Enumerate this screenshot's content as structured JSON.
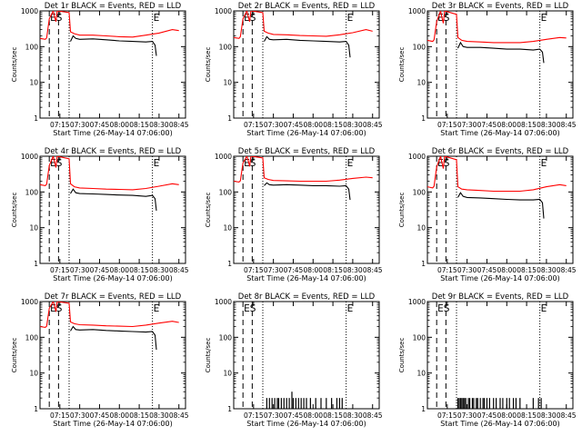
{
  "chart_data": [
    {
      "type": "line",
      "title": "Det 1r BLACK = Events, RED = LLD",
      "xlabel": "Start Time (26-May-14 07:06:00)",
      "ylabel": "Counts/sec",
      "yscale": "log",
      "ylim": [
        1,
        1000
      ],
      "x_ticks": [
        "07:15",
        "07:30",
        "07:45",
        "08:00",
        "08:15",
        "08:30",
        "08:45"
      ],
      "y_ticks": [
        "1",
        "10",
        "100",
        "1000"
      ],
      "markers": [
        {
          "label": "ES",
          "time": "07:07"
        },
        {
          "label": "E",
          "time": "08:25"
        }
      ],
      "lines_dashed": [
        "07:07",
        "07:14"
      ],
      "lines_dotted": [
        "07:22",
        "08:25"
      ],
      "series": [
        {
          "name": "Events",
          "color": "#000000",
          "x": [
            "07:23",
            "07:25",
            "07:27",
            "07:30",
            "07:40",
            "07:50",
            "08:00",
            "08:10",
            "08:20",
            "08:25",
            "08:27",
            "08:28"
          ],
          "y": [
            140,
            200,
            170,
            160,
            165,
            155,
            145,
            140,
            135,
            140,
            110,
            55
          ]
        },
        {
          "name": "LLD",
          "color": "#ff0000",
          "x": [
            "07:00",
            "07:04",
            "07:05",
            "07:07",
            "07:10",
            "07:11",
            "07:12",
            "07:13",
            "07:22",
            "07:23",
            "07:26",
            "07:30",
            "07:40",
            "07:50",
            "08:00",
            "08:10",
            "08:20",
            "08:30",
            "08:40",
            "08:45"
          ],
          "y": [
            170,
            160,
            175,
            600,
            1000,
            700,
            500,
            1000,
            900,
            260,
            230,
            210,
            210,
            200,
            190,
            185,
            210,
            240,
            300,
            280
          ]
        }
      ]
    },
    {
      "type": "line",
      "title": "Det 2r BLACK = Events, RED = LLD",
      "xlabel": "Start Time (26-May-14 07:06:00)",
      "ylabel": "Counts/sec",
      "yscale": "log",
      "ylim": [
        1,
        1000
      ],
      "x_ticks": [
        "07:15",
        "07:30",
        "07:45",
        "08:00",
        "08:15",
        "08:30",
        "08:45"
      ],
      "y_ticks": [
        "1",
        "10",
        "100",
        "1000"
      ],
      "markers": [
        {
          "label": "ES",
          "time": "07:07"
        },
        {
          "label": "E",
          "time": "08:25"
        }
      ],
      "lines_dashed": [
        "07:07",
        "07:14"
      ],
      "lines_dotted": [
        "07:22",
        "08:25"
      ],
      "series": [
        {
          "name": "Events",
          "color": "#000000",
          "x": [
            "07:23",
            "07:25",
            "07:27",
            "07:30",
            "07:40",
            "07:50",
            "08:00",
            "08:10",
            "08:20",
            "08:25",
            "08:27",
            "08:28"
          ],
          "y": [
            140,
            190,
            160,
            155,
            160,
            150,
            145,
            140,
            135,
            140,
            110,
            50
          ]
        },
        {
          "name": "LLD",
          "color": "#ff0000",
          "x": [
            "07:00",
            "07:04",
            "07:05",
            "07:07",
            "07:10",
            "07:11",
            "07:12",
            "07:13",
            "07:22",
            "07:23",
            "07:26",
            "07:30",
            "07:40",
            "07:50",
            "08:00",
            "08:10",
            "08:20",
            "08:30",
            "08:40",
            "08:45"
          ],
          "y": [
            180,
            170,
            190,
            600,
            1000,
            700,
            500,
            1000,
            900,
            270,
            240,
            220,
            215,
            205,
            200,
            195,
            215,
            245,
            300,
            270
          ]
        }
      ]
    },
    {
      "type": "line",
      "title": "Det 3r BLACK = Events, RED = LLD",
      "xlabel": "Start Time (26-May-14 07:06:00)",
      "ylabel": "Counts/sec",
      "yscale": "log",
      "ylim": [
        1,
        1000
      ],
      "x_ticks": [
        "07:15",
        "07:30",
        "07:45",
        "08:00",
        "08:15",
        "08:30",
        "08:45"
      ],
      "y_ticks": [
        "1",
        "10",
        "100",
        "1000"
      ],
      "markers": [
        {
          "label": "ES",
          "time": "07:07"
        },
        {
          "label": "E",
          "time": "08:25"
        }
      ],
      "lines_dashed": [
        "07:07",
        "07:14"
      ],
      "lines_dotted": [
        "07:22",
        "08:25"
      ],
      "series": [
        {
          "name": "Events",
          "color": "#000000",
          "x": [
            "07:23",
            "07:25",
            "07:27",
            "07:30",
            "07:40",
            "07:50",
            "08:00",
            "08:10",
            "08:20",
            "08:25",
            "08:27",
            "08:28"
          ],
          "y": [
            90,
            130,
            100,
            95,
            95,
            90,
            85,
            85,
            80,
            85,
            70,
            35
          ]
        },
        {
          "name": "LLD",
          "color": "#ff0000",
          "x": [
            "07:00",
            "07:04",
            "07:05",
            "07:07",
            "07:10",
            "07:11",
            "07:12",
            "07:13",
            "07:22",
            "07:23",
            "07:26",
            "07:30",
            "07:40",
            "07:50",
            "08:00",
            "08:10",
            "08:20",
            "08:30",
            "08:40",
            "08:45"
          ],
          "y": [
            150,
            140,
            155,
            500,
            1000,
            650,
            450,
            1000,
            800,
            180,
            150,
            140,
            135,
            130,
            130,
            130,
            140,
            160,
            180,
            175
          ]
        }
      ]
    },
    {
      "type": "line",
      "title": "Det 4r BLACK = Events, RED = LLD",
      "xlabel": "Start Time (26-May-14 07:06:00)",
      "ylabel": "Counts/sec",
      "yscale": "log",
      "ylim": [
        1,
        1000
      ],
      "x_ticks": [
        "07:15",
        "07:30",
        "07:45",
        "08:00",
        "08:15",
        "08:30",
        "08:45"
      ],
      "y_ticks": [
        "1",
        "10",
        "100",
        "1000"
      ],
      "markers": [
        {
          "label": "ES",
          "time": "07:07"
        },
        {
          "label": "E",
          "time": "08:25"
        }
      ],
      "lines_dashed": [
        "07:07",
        "07:14"
      ],
      "lines_dotted": [
        "07:22",
        "08:25"
      ],
      "series": [
        {
          "name": "Events",
          "color": "#000000",
          "x": [
            "07:23",
            "07:25",
            "07:27",
            "07:30",
            "07:40",
            "07:50",
            "08:00",
            "08:10",
            "08:20",
            "08:25",
            "08:27",
            "08:28"
          ],
          "y": [
            90,
            120,
            95,
            90,
            88,
            85,
            82,
            80,
            75,
            80,
            65,
            30
          ]
        },
        {
          "name": "LLD",
          "color": "#ff0000",
          "x": [
            "07:00",
            "07:04",
            "07:05",
            "07:07",
            "07:10",
            "07:11",
            "07:12",
            "07:13",
            "07:22",
            "07:23",
            "07:26",
            "07:30",
            "07:40",
            "07:50",
            "08:00",
            "08:10",
            "08:20",
            "08:30",
            "08:40",
            "08:45"
          ],
          "y": [
            160,
            150,
            165,
            550,
            1000,
            700,
            480,
            1000,
            850,
            170,
            140,
            130,
            125,
            120,
            118,
            115,
            125,
            145,
            170,
            160
          ]
        }
      ]
    },
    {
      "type": "line",
      "title": "Det 5r BLACK = Events, RED = LLD",
      "xlabel": "Start Time (26-May-14 07:06:00)",
      "ylabel": "Counts/sec",
      "yscale": "log",
      "ylim": [
        1,
        1000
      ],
      "x_ticks": [
        "07:15",
        "07:30",
        "07:45",
        "08:00",
        "08:15",
        "08:30",
        "08:45"
      ],
      "y_ticks": [
        "1",
        "10",
        "100",
        "1000"
      ],
      "markers": [
        {
          "label": "ES",
          "time": "07:07"
        },
        {
          "label": "E",
          "time": "08:25"
        }
      ],
      "lines_dashed": [
        "07:07",
        "07:14"
      ],
      "lines_dotted": [
        "07:22",
        "08:25"
      ],
      "series": [
        {
          "name": "Events",
          "color": "#000000",
          "x": [
            "07:23",
            "07:25",
            "07:27",
            "07:30",
            "07:40",
            "07:50",
            "08:00",
            "08:10",
            "08:20",
            "08:25",
            "08:27",
            "08:28"
          ],
          "y": [
            150,
            180,
            160,
            155,
            160,
            155,
            150,
            150,
            145,
            150,
            120,
            60
          ]
        },
        {
          "name": "LLD",
          "color": "#ff0000",
          "x": [
            "07:00",
            "07:04",
            "07:05",
            "07:07",
            "07:10",
            "07:11",
            "07:12",
            "07:13",
            "07:22",
            "07:23",
            "07:26",
            "07:30",
            "07:40",
            "07:50",
            "08:00",
            "08:10",
            "08:20",
            "08:30",
            "08:40",
            "08:45"
          ],
          "y": [
            200,
            190,
            205,
            650,
            1000,
            750,
            520,
            1000,
            900,
            250,
            225,
            210,
            205,
            200,
            200,
            200,
            215,
            240,
            260,
            250
          ]
        }
      ]
    },
    {
      "type": "line",
      "title": "Det 6r BLACK = Events, RED = LLD",
      "xlabel": "Start Time (26-May-14 07:06:00)",
      "ylabel": "Counts/sec",
      "yscale": "log",
      "ylim": [
        1,
        1000
      ],
      "x_ticks": [
        "07:15",
        "07:30",
        "07:45",
        "08:00",
        "08:15",
        "08:30",
        "08:45"
      ],
      "y_ticks": [
        "1",
        "10",
        "100",
        "1000"
      ],
      "markers": [
        {
          "label": "ES",
          "time": "07:07"
        },
        {
          "label": "E",
          "time": "08:25"
        }
      ],
      "lines_dashed": [
        "07:07",
        "07:14"
      ],
      "lines_dotted": [
        "07:22",
        "08:25"
      ],
      "series": [
        {
          "name": "Events",
          "color": "#000000",
          "x": [
            "07:23",
            "07:25",
            "07:27",
            "07:30",
            "07:40",
            "07:50",
            "08:00",
            "08:10",
            "08:20",
            "08:25",
            "08:27",
            "08:28"
          ],
          "y": [
            70,
            95,
            75,
            70,
            68,
            65,
            62,
            60,
            60,
            62,
            50,
            18
          ]
        },
        {
          "name": "LLD",
          "color": "#ff0000",
          "x": [
            "07:00",
            "07:04",
            "07:05",
            "07:07",
            "07:10",
            "07:11",
            "07:12",
            "07:13",
            "07:22",
            "07:23",
            "07:26",
            "07:30",
            "07:40",
            "07:50",
            "08:00",
            "08:10",
            "08:20",
            "08:30",
            "08:40",
            "08:45"
          ],
          "y": [
            140,
            130,
            145,
            500,
            1000,
            650,
            450,
            1000,
            800,
            140,
            120,
            115,
            110,
            105,
            105,
            105,
            115,
            140,
            160,
            150
          ]
        }
      ]
    },
    {
      "type": "line",
      "title": "Det 7r BLACK = Events, RED = LLD",
      "xlabel": "Start Time (26-May-14 07:06:00)",
      "ylabel": "Counts/sec",
      "yscale": "log",
      "ylim": [
        1,
        1000
      ],
      "x_ticks": [
        "07:15",
        "07:30",
        "07:45",
        "08:00",
        "08:15",
        "08:30",
        "08:45"
      ],
      "y_ticks": [
        "1",
        "10",
        "100",
        "1000"
      ],
      "markers": [
        {
          "label": "ES",
          "time": "07:07"
        },
        {
          "label": "E",
          "time": "08:25"
        }
      ],
      "lines_dashed": [
        "07:07",
        "07:14"
      ],
      "lines_dotted": [
        "07:22",
        "08:25"
      ],
      "series": [
        {
          "name": "Events",
          "color": "#000000",
          "x": [
            "07:23",
            "07:25",
            "07:27",
            "07:30",
            "07:40",
            "07:50",
            "08:00",
            "08:10",
            "08:20",
            "08:25",
            "08:27",
            "08:28"
          ],
          "y": [
            150,
            200,
            165,
            160,
            165,
            155,
            150,
            145,
            140,
            145,
            115,
            45
          ]
        },
        {
          "name": "LLD",
          "color": "#ff0000",
          "x": [
            "07:00",
            "07:04",
            "07:05",
            "07:07",
            "07:10",
            "07:11",
            "07:12",
            "07:13",
            "07:22",
            "07:23",
            "07:26",
            "07:30",
            "07:40",
            "07:50",
            "08:00",
            "08:10",
            "08:20",
            "08:30",
            "08:40",
            "08:45"
          ],
          "y": [
            200,
            190,
            205,
            650,
            1000,
            750,
            520,
            1000,
            900,
            270,
            240,
            225,
            220,
            210,
            205,
            200,
            220,
            250,
            280,
            260
          ]
        }
      ]
    },
    {
      "type": "bar",
      "title": "Det 8r BLACK = Events, RED = LLD",
      "xlabel": "Start Time (26-May-14 07:06:00)",
      "ylabel": "Counts/sec",
      "yscale": "log",
      "ylim": [
        1,
        1000
      ],
      "x_ticks": [
        "07:15",
        "07:30",
        "07:45",
        "08:00",
        "08:15",
        "08:30",
        "08:45"
      ],
      "y_ticks": [
        "1",
        "10",
        "100",
        "1000"
      ],
      "markers": [
        {
          "label": "ES",
          "time": "07:07"
        },
        {
          "label": "E",
          "time": "08:25"
        }
      ],
      "lines_dashed": [
        "07:07",
        "07:14"
      ],
      "lines_dotted": [
        "07:22",
        "08:25"
      ],
      "series": [
        {
          "name": "Events",
          "color": "#000000",
          "x": [
            "07:25",
            "07:27",
            "07:29",
            "07:31",
            "07:33",
            "07:34",
            "07:36",
            "07:38",
            "07:40",
            "07:42",
            "07:44",
            "07:45",
            "07:47",
            "07:49",
            "07:51",
            "07:53",
            "07:55",
            "07:58",
            "08:02",
            "08:06",
            "08:10",
            "08:14",
            "08:18",
            "08:20",
            "08:22"
          ],
          "y": [
            2,
            2,
            2,
            2,
            2,
            2,
            2,
            2,
            2,
            2,
            3,
            2,
            2,
            2,
            2,
            2,
            2,
            2,
            2,
            2,
            2,
            2,
            2,
            2,
            2
          ]
        }
      ]
    },
    {
      "type": "bar",
      "title": "Det 9r BLACK = Events, RED = LLD",
      "xlabel": "Start Time (26-May-14 07:06:00)",
      "ylabel": "Counts/sec",
      "yscale": "log",
      "ylim": [
        1,
        1000
      ],
      "x_ticks": [
        "07:15",
        "07:30",
        "07:45",
        "08:00",
        "08:15",
        "08:30",
        "08:45"
      ],
      "y_ticks": [
        "1",
        "10",
        "100",
        "1000"
      ],
      "markers": [
        {
          "label": "ES",
          "time": "07:07"
        },
        {
          "label": "E",
          "time": "08:25"
        }
      ],
      "lines_dashed": [
        "07:07",
        "07:14"
      ],
      "lines_dotted": [
        "07:22",
        "08:25"
      ],
      "series": [
        {
          "name": "Events",
          "color": "#000000",
          "x": [
            "07:23",
            "07:24",
            "07:25",
            "07:26",
            "07:27",
            "07:28",
            "07:29",
            "07:31",
            "07:32",
            "07:34",
            "07:35",
            "07:37",
            "07:38",
            "07:40",
            "07:42",
            "07:43",
            "07:45",
            "07:47",
            "07:50",
            "07:52",
            "07:55",
            "07:57",
            "08:00",
            "08:02",
            "08:05",
            "08:07",
            "08:10",
            "08:20",
            "08:24",
            "08:26"
          ],
          "y": [
            2,
            2,
            2,
            2,
            2,
            2,
            2,
            2,
            2,
            2,
            2,
            2,
            2,
            2,
            2,
            2,
            2,
            2,
            2,
            2,
            2,
            2,
            2,
            2,
            2,
            2,
            2,
            2,
            2,
            2
          ]
        }
      ]
    }
  ]
}
